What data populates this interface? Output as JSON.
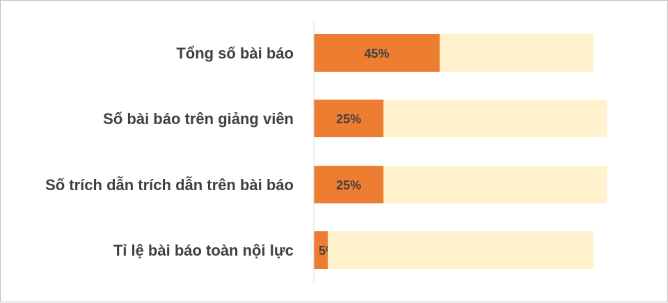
{
  "chart_data": {
    "type": "bar",
    "orientation": "horizontal",
    "stacked": true,
    "categories": [
      "Tổng số bài báo",
      "Số bài báo trên giảng viên",
      "Số trích dẫn trích dẫn trên bài báo",
      "Tỉ lệ bài báo toàn nội lực"
    ],
    "series": [
      {
        "values": [
          45,
          25,
          25,
          5
        ],
        "labels": [
          "45%",
          "25%",
          "25%",
          "5%"
        ],
        "color": "#ED7D31"
      },
      {
        "values": [
          55,
          80,
          80,
          95
        ],
        "color": "#FFF2CC"
      }
    ],
    "xlim": [
      0,
      100
    ],
    "grid": false,
    "legend": "none"
  }
}
